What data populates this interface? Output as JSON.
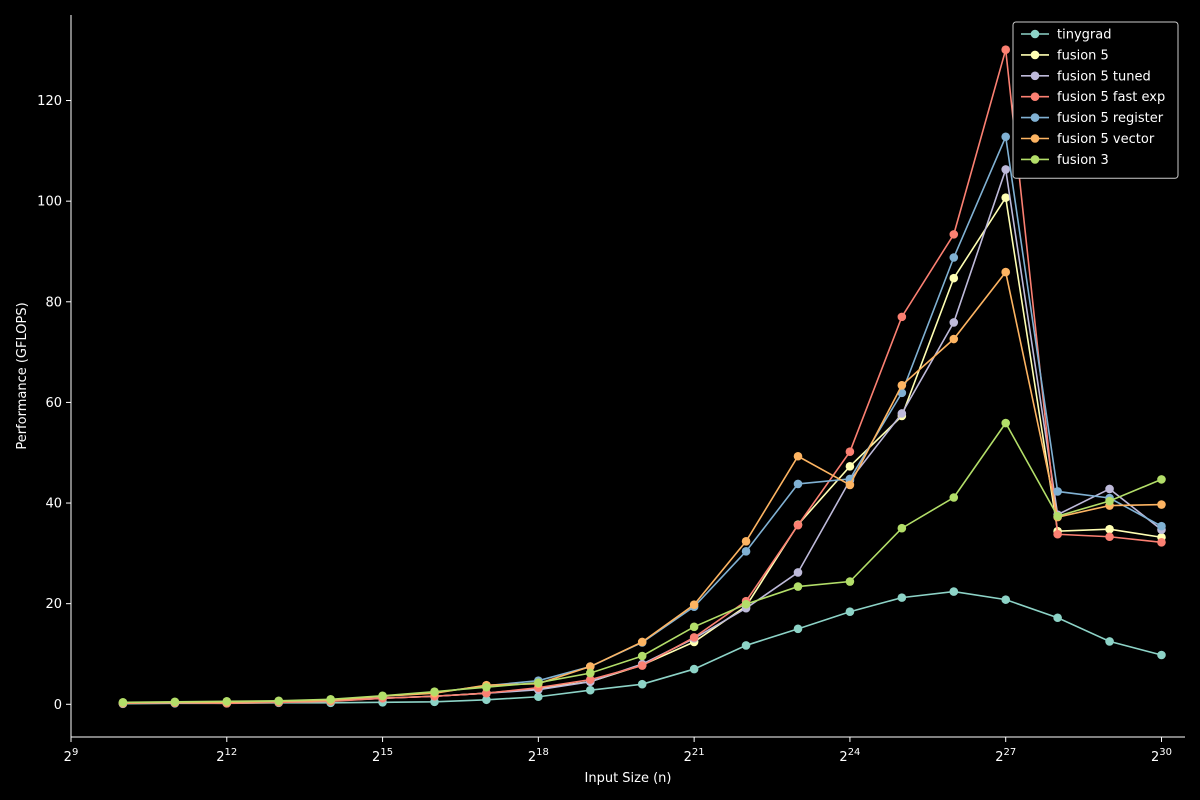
{
  "chart_data": {
    "type": "line",
    "xlabel": "Input Size (n)",
    "ylabel": "Performance (GFLOPS)",
    "x_scale": "log2",
    "xlim": [
      512,
      1469607936
    ],
    "ylim": [
      -6.5,
      137
    ],
    "x_ticks": [
      {
        "exp": 9,
        "value": 512
      },
      {
        "exp": 12,
        "value": 4096
      },
      {
        "exp": 15,
        "value": 32768
      },
      {
        "exp": 18,
        "value": 262144
      },
      {
        "exp": 21,
        "value": 2097152
      },
      {
        "exp": 24,
        "value": 16777216
      },
      {
        "exp": 27,
        "value": 134217728
      },
      {
        "exp": 30,
        "value": 1073741824
      }
    ],
    "x_tick_base": "2",
    "y_ticks": [
      0,
      20,
      40,
      60,
      80,
      100,
      120
    ],
    "grid": false,
    "legend_position": "top-right",
    "x": [
      1024,
      2048,
      4096,
      8192,
      16384,
      32768,
      65536,
      131072,
      262144,
      524288,
      1048576,
      2097152,
      4194304,
      8388608,
      16777216,
      33554432,
      67108864,
      134217728,
      268435456,
      536870912,
      1073741824
    ],
    "series": [
      {
        "name": "tinygrad",
        "color": "#8dd3c7",
        "values": [
          0.1,
          0.2,
          0.2,
          0.3,
          0.3,
          0.4,
          0.5,
          0.9,
          1.5,
          2.8,
          4.0,
          7.0,
          11.7,
          15.0,
          18.4,
          21.2,
          22.4,
          20.8,
          17.2,
          12.5,
          9.8
        ]
      },
      {
        "name": "fusion 5",
        "color": "#ffffb3",
        "values": [
          0.2,
          0.3,
          0.3,
          0.5,
          0.7,
          1.2,
          1.6,
          2.2,
          3.2,
          4.5,
          7.8,
          12.4,
          19.5,
          35.7,
          47.3,
          57.3,
          84.7,
          100.7,
          34.4,
          34.8,
          33.2
        ]
      },
      {
        "name": "fusion 5 tuned",
        "color": "#bebada",
        "values": [
          0.2,
          0.3,
          0.3,
          0.5,
          0.7,
          1.2,
          1.6,
          2.2,
          2.9,
          4.5,
          8.0,
          13.1,
          19.1,
          26.2,
          44.5,
          57.8,
          75.9,
          106.3,
          37.7,
          42.8,
          34.7
        ]
      },
      {
        "name": "fusion 5 fast exp",
        "color": "#fb8072",
        "values": [
          0.2,
          0.3,
          0.2,
          0.4,
          0.6,
          1.2,
          1.6,
          2.2,
          3.3,
          4.9,
          7.7,
          13.3,
          20.5,
          35.6,
          50.2,
          77.0,
          93.4,
          130.1,
          33.8,
          33.3,
          32.2
        ]
      },
      {
        "name": "fusion 5 register",
        "color": "#80b1d3",
        "values": [
          0.3,
          0.4,
          0.4,
          0.6,
          0.8,
          1.6,
          2.3,
          3.7,
          4.7,
          7.5,
          12.3,
          19.4,
          30.4,
          43.8,
          44.8,
          61.9,
          88.8,
          112.8,
          42.3,
          41.0,
          35.4
        ]
      },
      {
        "name": "fusion 5 vector",
        "color": "#fdb462",
        "values": [
          0.3,
          0.4,
          0.4,
          0.6,
          0.8,
          1.6,
          2.2,
          3.8,
          4.1,
          7.5,
          12.4,
          19.8,
          32.4,
          49.3,
          43.6,
          63.4,
          72.6,
          85.9,
          37.2,
          39.5,
          39.7
        ]
      },
      {
        "name": "fusion 3",
        "color": "#b3de69",
        "values": [
          0.4,
          0.5,
          0.6,
          0.7,
          1.0,
          1.7,
          2.5,
          3.4,
          4.3,
          6.2,
          9.6,
          15.4,
          19.9,
          23.4,
          24.4,
          35.0,
          41.1,
          55.9,
          37.4,
          40.4,
          44.7
        ]
      }
    ]
  }
}
